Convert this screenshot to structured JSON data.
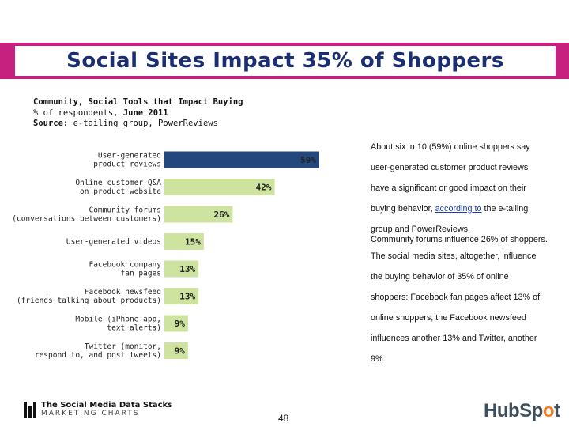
{
  "header": {
    "title": "Social Sites Impact 35% of Shoppers"
  },
  "subtitle": {
    "line1": "Community, Social Tools that Impact Buying",
    "line2_prefix": "% of respondents, ",
    "line2_date": "June 2011",
    "line3_label": "Source:",
    "line3_text": " e-tailing group, PowerReviews"
  },
  "colors": {
    "accent": "#c7217f",
    "title": "#1a2e73",
    "bar_blue": "#24477e",
    "bar_green": "#cfe3a0"
  },
  "chart_data": {
    "type": "bar",
    "orientation": "horizontal",
    "title": "Community, Social Tools that Impact Buying",
    "xlim": [
      0,
      100
    ],
    "categories": [
      [
        "User-generated",
        "product reviews"
      ],
      [
        "Online customer Q&A",
        "on product website"
      ],
      [
        "Community forums",
        "(conversations between customers)"
      ],
      [
        "User-generated videos"
      ],
      [
        "Facebook company",
        "fan pages"
      ],
      [
        "Facebook newsfeed",
        "(friends talking about products)"
      ],
      [
        "Mobile (iPhone app,",
        "text alerts)"
      ],
      [
        "Twitter (monitor,",
        "respond to, and post tweets)"
      ]
    ],
    "values": [
      59,
      42,
      26,
      15,
      13,
      13,
      9,
      9
    ],
    "value_labels": [
      "59%",
      "42%",
      "26%",
      "15%",
      "13%",
      "13%",
      "9%",
      "9%"
    ],
    "highlight": [
      true,
      false,
      false,
      false,
      false,
      false,
      false,
      false
    ]
  },
  "notes": {
    "p1_lines": [
      "About six in 10 (59%) online shoppers say",
      "user-generated customer product reviews",
      "have a significant or good impact on their"
    ],
    "p1_line4_prefix": "buying behavior, ",
    "p1_link": "according to",
    "p1_line4_suffix": " the e-tailing",
    "p1_line5": "group and PowerReviews.",
    "p2": "Community forums influence 26% of shoppers.",
    "p3_lines": [
      "The social media sites, altogether, influence",
      "the buying behavior of 35% of online",
      "shoppers: Facebook fan pages affect 13% of",
      "online shoppers; the Facebook newsfeed",
      "influences another 13% and Twitter, another",
      "9%."
    ]
  },
  "footer": {
    "logo_line1": "The Social Media Data Stacks",
    "logo_line2": "MARKETING CHARTS",
    "page_number": "48",
    "brand_pre": "HubSp",
    "brand_o": "o",
    "brand_post": "t"
  }
}
